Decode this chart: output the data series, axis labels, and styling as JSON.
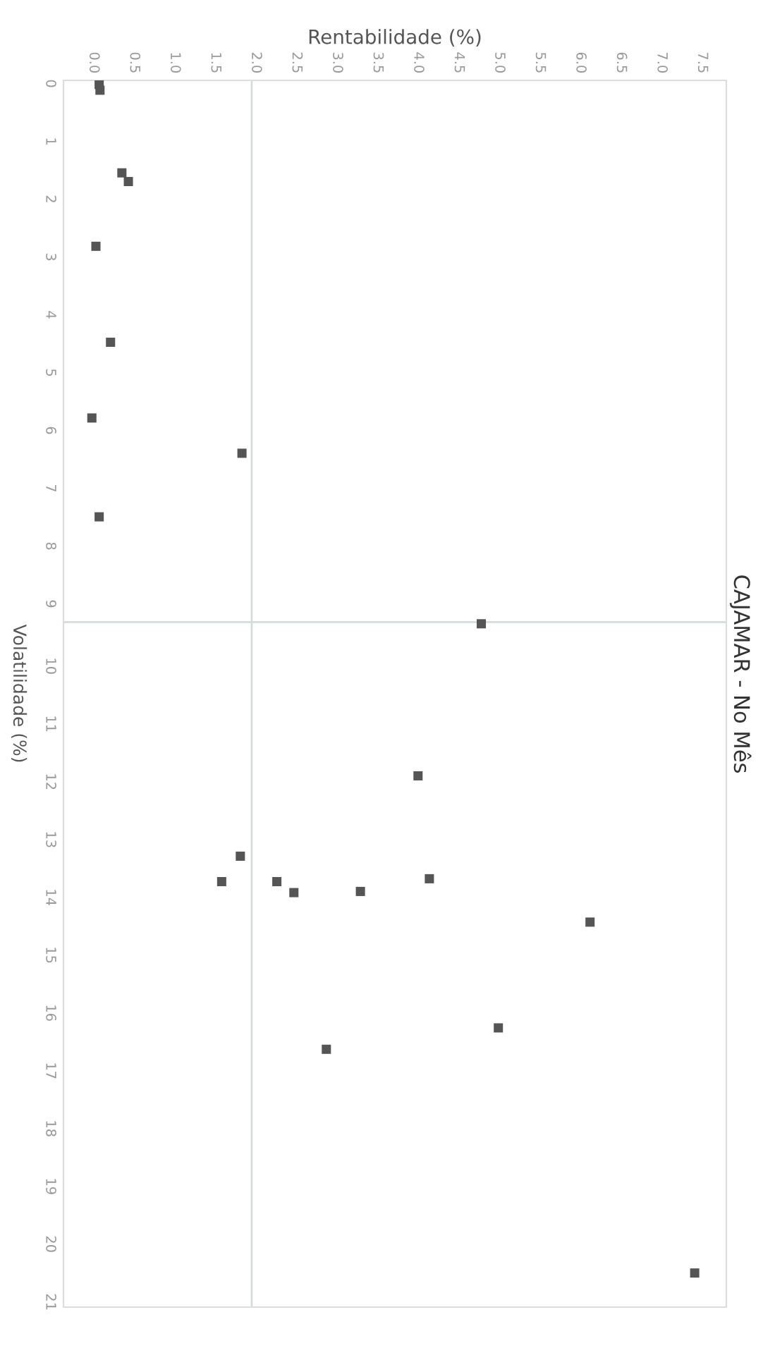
{
  "chart_data": {
    "type": "scatter",
    "title": "CAJAMAR - No Mês",
    "xlabel": "Rentabilidade (%)",
    "ylabel": "Volatilidade (%)",
    "x": [
      0.07,
      0.08,
      0.35,
      0.43,
      0.03,
      0.21,
      -0.02,
      1.83,
      0.07,
      4.78,
      4.0,
      1.81,
      1.58,
      2.26,
      2.47,
      3.29,
      4.14,
      6.12,
      4.99,
      2.87,
      7.41
    ],
    "series": [
      {
        "color": "#555555",
        "values": [
          0.0,
          0.1,
          1.53,
          1.68,
          2.8,
          4.46,
          5.77,
          6.38,
          7.48,
          9.33,
          11.96,
          13.35,
          13.79,
          13.79,
          13.98,
          13.96,
          13.74,
          14.49,
          16.32,
          16.69,
          20.56
        ]
      }
    ],
    "marker": "square",
    "xlim": [
      -0.37,
      7.8
    ],
    "xticks": [
      {
        "value": 0,
        "label": "0.0"
      },
      {
        "value": 0.5,
        "label": "0.5"
      },
      {
        "value": 1,
        "label": "1.0"
      },
      {
        "value": 1.5,
        "label": "1.5"
      },
      {
        "value": 2,
        "label": "2.0"
      },
      {
        "value": 2.5,
        "label": "2.5"
      },
      {
        "value": 3,
        "label": "3.0"
      },
      {
        "value": 3.5,
        "label": "3.5"
      },
      {
        "value": 4,
        "label": "4.0"
      },
      {
        "value": 4.5,
        "label": "4.5"
      },
      {
        "value": 5,
        "label": "5.0"
      },
      {
        "value": 5.5,
        "label": "5.5"
      },
      {
        "value": 6,
        "label": "6.0"
      },
      {
        "value": 6.5,
        "label": "6.5"
      },
      {
        "value": 7,
        "label": "7.0"
      },
      {
        "value": 7.5,
        "label": "7.5"
      }
    ],
    "ylim": [
      21.15,
      -0.07
    ],
    "yticks": [
      0,
      1,
      2,
      3,
      4,
      5,
      6,
      7,
      8,
      9,
      10,
      11,
      12,
      13,
      14,
      15,
      16,
      17,
      18,
      19,
      20,
      21
    ],
    "ref_lines": [
      {
        "axis": "x",
        "value": 1.95,
        "color": "#d3ddd9"
      },
      {
        "axis": "y",
        "value": 9.3,
        "color": "#d3ddd9"
      }
    ],
    "grid": false,
    "legend": false
  }
}
